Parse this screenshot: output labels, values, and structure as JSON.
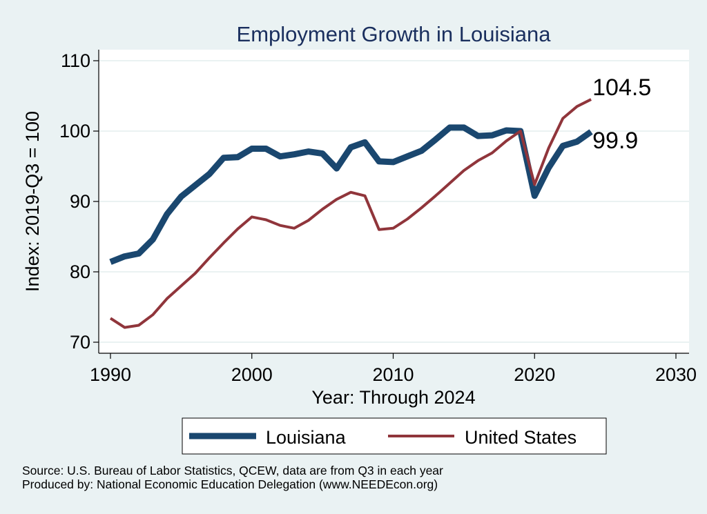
{
  "chart_data": {
    "type": "line",
    "title": "Employment Growth in Louisiana",
    "xlabel": "Year: Through 2024",
    "ylabel": "Index: 2019-Q3 = 100",
    "xlim": [
      1990,
      2030
    ],
    "ylim": [
      70,
      110
    ],
    "xticks": [
      1990,
      2000,
      2010,
      2020,
      2030
    ],
    "yticks": [
      70,
      80,
      90,
      100,
      110
    ],
    "grid": true,
    "legend_position": "bottom",
    "x": [
      1990,
      1991,
      1992,
      1993,
      1994,
      1995,
      1996,
      1997,
      1998,
      1999,
      2000,
      2001,
      2002,
      2003,
      2004,
      2005,
      2006,
      2007,
      2008,
      2009,
      2010,
      2011,
      2012,
      2013,
      2014,
      2015,
      2016,
      2017,
      2018,
      2019,
      2020,
      2021,
      2022,
      2023,
      2024
    ],
    "series": [
      {
        "name": "Louisiana",
        "color": "#1a476f",
        "values": [
          81.4,
          82.2,
          82.6,
          84.6,
          88.2,
          90.7,
          92.3,
          93.9,
          96.2,
          96.3,
          97.5,
          97.5,
          96.4,
          96.7,
          97.1,
          96.8,
          94.7,
          97.7,
          98.4,
          95.7,
          95.6,
          96.4,
          97.2,
          98.8,
          100.5,
          100.5,
          99.3,
          99.4,
          100.1,
          100.0,
          90.8,
          94.8,
          97.9,
          98.5,
          99.9
        ],
        "end_label": "99.9"
      },
      {
        "name": "United States",
        "color": "#90353b",
        "values": [
          73.4,
          72.1,
          72.4,
          73.9,
          76.2,
          78.0,
          79.8,
          82.0,
          84.1,
          86.1,
          87.8,
          87.4,
          86.6,
          86.2,
          87.3,
          88.9,
          90.3,
          91.3,
          90.8,
          86.0,
          86.2,
          87.5,
          89.1,
          90.8,
          92.6,
          94.4,
          95.8,
          96.9,
          98.6,
          100.0,
          92.4,
          97.6,
          101.8,
          103.5,
          104.5
        ],
        "end_label": "104.5"
      }
    ]
  },
  "footer": {
    "source": "Source: U.S. Bureau of Labor Statistics, QCEW, data are from Q3 in each year",
    "producer": "Produced by: National Economic Education Delegation (www.NEEDEcon.org)"
  }
}
